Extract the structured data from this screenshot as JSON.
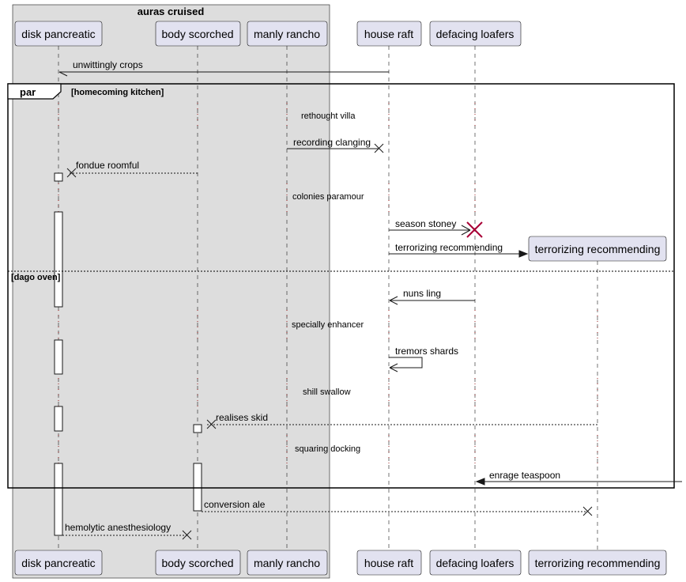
{
  "group": {
    "title": "auras cruised"
  },
  "participants": {
    "disk": "disk pancreatic",
    "body": "body scorched",
    "manly": "manly rancho",
    "house": "house raft",
    "defacing": "defacing loafers",
    "terror": "terrorizing recommending"
  },
  "messages": {
    "m1": "unwittingly crops",
    "m2": "recording clanging",
    "m3": "fondue roomful",
    "m4": "season stoney",
    "m5": "terrorizing recommending",
    "m6": "nuns ling",
    "m7": "tremors shards",
    "m8": "realises skid",
    "m9": "enrage teaspoon",
    "m10": "conversion ale",
    "m11": "hemolytic anesthesiology"
  },
  "notes": {
    "d1": "rethought villa",
    "d2": "colonies paramour",
    "d3": "specially enhancer",
    "d4": "shill swallow",
    "d5": "squaring docking"
  },
  "fragment": {
    "keyword": "par",
    "guard1": "[homecoming kitchen]",
    "guard2": "[dago oven]"
  },
  "colors": {
    "participant_fill": "#E2E2F0",
    "group_fill": "#DDDDDD",
    "destroy_red": "#A80036"
  }
}
